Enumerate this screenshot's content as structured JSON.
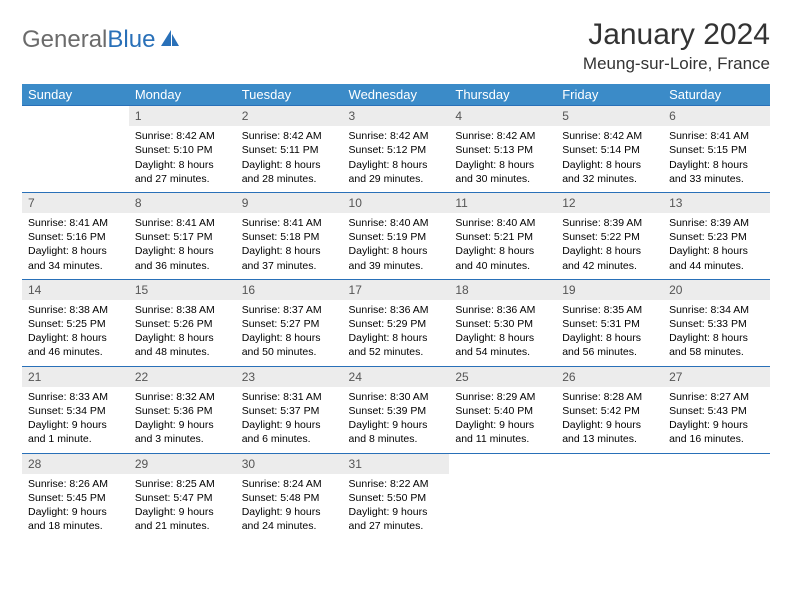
{
  "brand": {
    "general": "General",
    "blue": "Blue"
  },
  "title": "January 2024",
  "location": "Meung-sur-Loire, France",
  "days": [
    "Sunday",
    "Monday",
    "Tuesday",
    "Wednesday",
    "Thursday",
    "Friday",
    "Saturday"
  ],
  "colors": {
    "header_bg": "#3b8bc8",
    "daynum_bg": "#ececec",
    "rule": "#2970b8",
    "logo_gray": "#6b6b6b"
  },
  "weeks": [
    [
      null,
      {
        "n": "1",
        "sr": "8:42 AM",
        "ss": "5:10 PM",
        "dl": "8 hours and 27 minutes."
      },
      {
        "n": "2",
        "sr": "8:42 AM",
        "ss": "5:11 PM",
        "dl": "8 hours and 28 minutes."
      },
      {
        "n": "3",
        "sr": "8:42 AM",
        "ss": "5:12 PM",
        "dl": "8 hours and 29 minutes."
      },
      {
        "n": "4",
        "sr": "8:42 AM",
        "ss": "5:13 PM",
        "dl": "8 hours and 30 minutes."
      },
      {
        "n": "5",
        "sr": "8:42 AM",
        "ss": "5:14 PM",
        "dl": "8 hours and 32 minutes."
      },
      {
        "n": "6",
        "sr": "8:41 AM",
        "ss": "5:15 PM",
        "dl": "8 hours and 33 minutes."
      }
    ],
    [
      {
        "n": "7",
        "sr": "8:41 AM",
        "ss": "5:16 PM",
        "dl": "8 hours and 34 minutes."
      },
      {
        "n": "8",
        "sr": "8:41 AM",
        "ss": "5:17 PM",
        "dl": "8 hours and 36 minutes."
      },
      {
        "n": "9",
        "sr": "8:41 AM",
        "ss": "5:18 PM",
        "dl": "8 hours and 37 minutes."
      },
      {
        "n": "10",
        "sr": "8:40 AM",
        "ss": "5:19 PM",
        "dl": "8 hours and 39 minutes."
      },
      {
        "n": "11",
        "sr": "8:40 AM",
        "ss": "5:21 PM",
        "dl": "8 hours and 40 minutes."
      },
      {
        "n": "12",
        "sr": "8:39 AM",
        "ss": "5:22 PM",
        "dl": "8 hours and 42 minutes."
      },
      {
        "n": "13",
        "sr": "8:39 AM",
        "ss": "5:23 PM",
        "dl": "8 hours and 44 minutes."
      }
    ],
    [
      {
        "n": "14",
        "sr": "8:38 AM",
        "ss": "5:25 PM",
        "dl": "8 hours and 46 minutes."
      },
      {
        "n": "15",
        "sr": "8:38 AM",
        "ss": "5:26 PM",
        "dl": "8 hours and 48 minutes."
      },
      {
        "n": "16",
        "sr": "8:37 AM",
        "ss": "5:27 PM",
        "dl": "8 hours and 50 minutes."
      },
      {
        "n": "17",
        "sr": "8:36 AM",
        "ss": "5:29 PM",
        "dl": "8 hours and 52 minutes."
      },
      {
        "n": "18",
        "sr": "8:36 AM",
        "ss": "5:30 PM",
        "dl": "8 hours and 54 minutes."
      },
      {
        "n": "19",
        "sr": "8:35 AM",
        "ss": "5:31 PM",
        "dl": "8 hours and 56 minutes."
      },
      {
        "n": "20",
        "sr": "8:34 AM",
        "ss": "5:33 PM",
        "dl": "8 hours and 58 minutes."
      }
    ],
    [
      {
        "n": "21",
        "sr": "8:33 AM",
        "ss": "5:34 PM",
        "dl": "9 hours and 1 minute."
      },
      {
        "n": "22",
        "sr": "8:32 AM",
        "ss": "5:36 PM",
        "dl": "9 hours and 3 minutes."
      },
      {
        "n": "23",
        "sr": "8:31 AM",
        "ss": "5:37 PM",
        "dl": "9 hours and 6 minutes."
      },
      {
        "n": "24",
        "sr": "8:30 AM",
        "ss": "5:39 PM",
        "dl": "9 hours and 8 minutes."
      },
      {
        "n": "25",
        "sr": "8:29 AM",
        "ss": "5:40 PM",
        "dl": "9 hours and 11 minutes."
      },
      {
        "n": "26",
        "sr": "8:28 AM",
        "ss": "5:42 PM",
        "dl": "9 hours and 13 minutes."
      },
      {
        "n": "27",
        "sr": "8:27 AM",
        "ss": "5:43 PM",
        "dl": "9 hours and 16 minutes."
      }
    ],
    [
      {
        "n": "28",
        "sr": "8:26 AM",
        "ss": "5:45 PM",
        "dl": "9 hours and 18 minutes."
      },
      {
        "n": "29",
        "sr": "8:25 AM",
        "ss": "5:47 PM",
        "dl": "9 hours and 21 minutes."
      },
      {
        "n": "30",
        "sr": "8:24 AM",
        "ss": "5:48 PM",
        "dl": "9 hours and 24 minutes."
      },
      {
        "n": "31",
        "sr": "8:22 AM",
        "ss": "5:50 PM",
        "dl": "9 hours and 27 minutes."
      },
      null,
      null,
      null
    ]
  ],
  "labels": {
    "sunrise": "Sunrise: ",
    "sunset": "Sunset: ",
    "daylight": "Daylight: "
  }
}
